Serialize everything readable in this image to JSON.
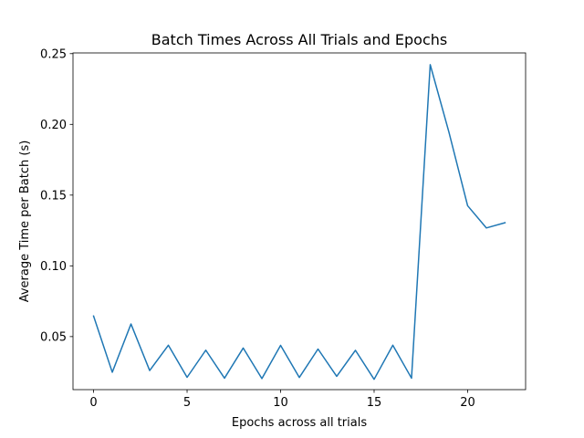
{
  "chart_data": {
    "type": "line",
    "title": "Batch Times Across All Trials and Epochs",
    "xlabel": "Epochs across all trials",
    "ylabel": "Average Time per Batch (s)",
    "xlim": [
      -1.1,
      23.1
    ],
    "ylim": [
      0.0125,
      0.2505
    ],
    "xticks": [
      0,
      5,
      10,
      15,
      20
    ],
    "xtick_labels": [
      "0",
      "5",
      "10",
      "15",
      "20"
    ],
    "yticks": [
      0.05,
      0.1,
      0.15,
      0.2,
      0.25
    ],
    "ytick_labels": [
      "0.05",
      "0.10",
      "0.15",
      "0.20",
      "0.25"
    ],
    "grid": false,
    "series": [
      {
        "color": "#1f77b4",
        "x": [
          0,
          1,
          2,
          3,
          4,
          5,
          6,
          7,
          8,
          9,
          10,
          11,
          12,
          13,
          14,
          15,
          16,
          17,
          18,
          19,
          20,
          21,
          22
        ],
        "values": [
          0.0645,
          0.0248,
          0.0589,
          0.026,
          0.0439,
          0.0212,
          0.0404,
          0.0206,
          0.0419,
          0.0203,
          0.0438,
          0.0211,
          0.0412,
          0.0219,
          0.0403,
          0.0198,
          0.0439,
          0.0206,
          0.2422,
          0.1945,
          0.1425,
          0.1268,
          0.1305
        ]
      }
    ]
  }
}
